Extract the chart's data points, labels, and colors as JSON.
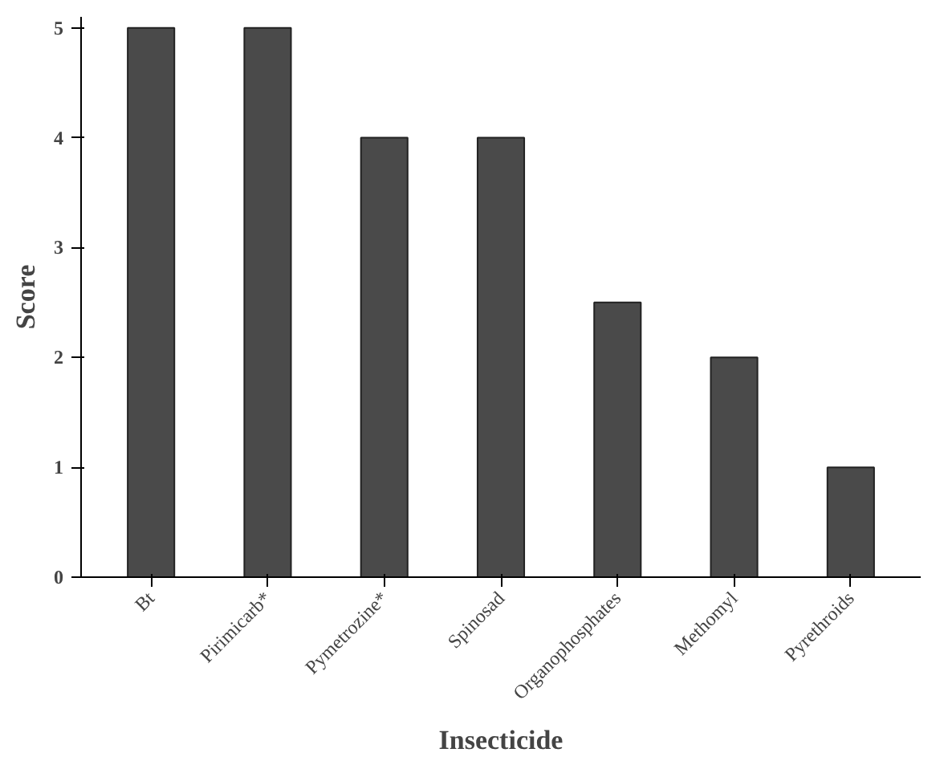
{
  "chart_data": {
    "type": "bar",
    "xlabel": "Insecticide",
    "ylabel": "Score",
    "categories": [
      "Bt",
      "Pirimicarb*",
      "Pymetrozine*",
      "Spinosad",
      "Organophosphates",
      "Methomyl",
      "Pyrethroids"
    ],
    "values": [
      5,
      5,
      4,
      4,
      2.5,
      2,
      1
    ],
    "color": "#4a4a4a",
    "ylim": [
      0,
      5.1
    ],
    "yticks": [
      0,
      1,
      2,
      3,
      4,
      5
    ],
    "grid": false
  }
}
